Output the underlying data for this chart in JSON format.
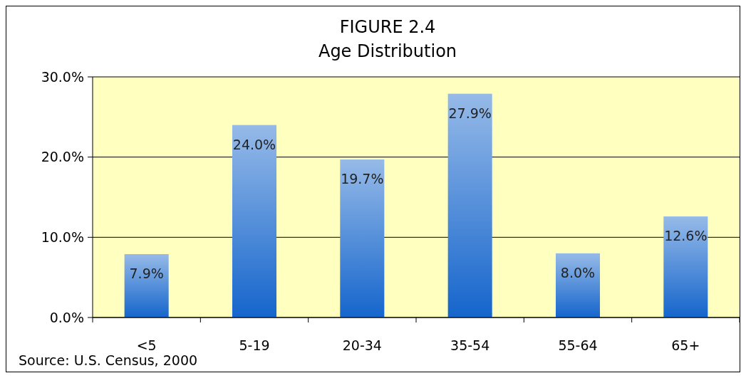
{
  "chart_data": {
    "type": "bar",
    "title": "FIGURE 2.4",
    "subtitle": "Age Distribution",
    "categories": [
      "<5",
      "5-19",
      "20-34",
      "35-54",
      "55-64",
      "65+"
    ],
    "values": [
      7.9,
      24.0,
      19.7,
      27.9,
      8.0,
      12.6
    ],
    "value_labels": [
      "7.9%",
      "24.0%",
      "19.7%",
      "27.9%",
      "8.0%",
      "12.6%"
    ],
    "color": "#1565cc",
    "ylim": [
      0,
      30
    ],
    "yticks": [
      {
        "value": 0,
        "label": "0.0%"
      },
      {
        "value": 10,
        "label": "10.0%"
      },
      {
        "value": 20,
        "label": "20.0%"
      },
      {
        "value": 30,
        "label": "30.0%"
      }
    ],
    "grid": "y",
    "annotations": [
      "Source: U.S. Census, 2000"
    ]
  }
}
